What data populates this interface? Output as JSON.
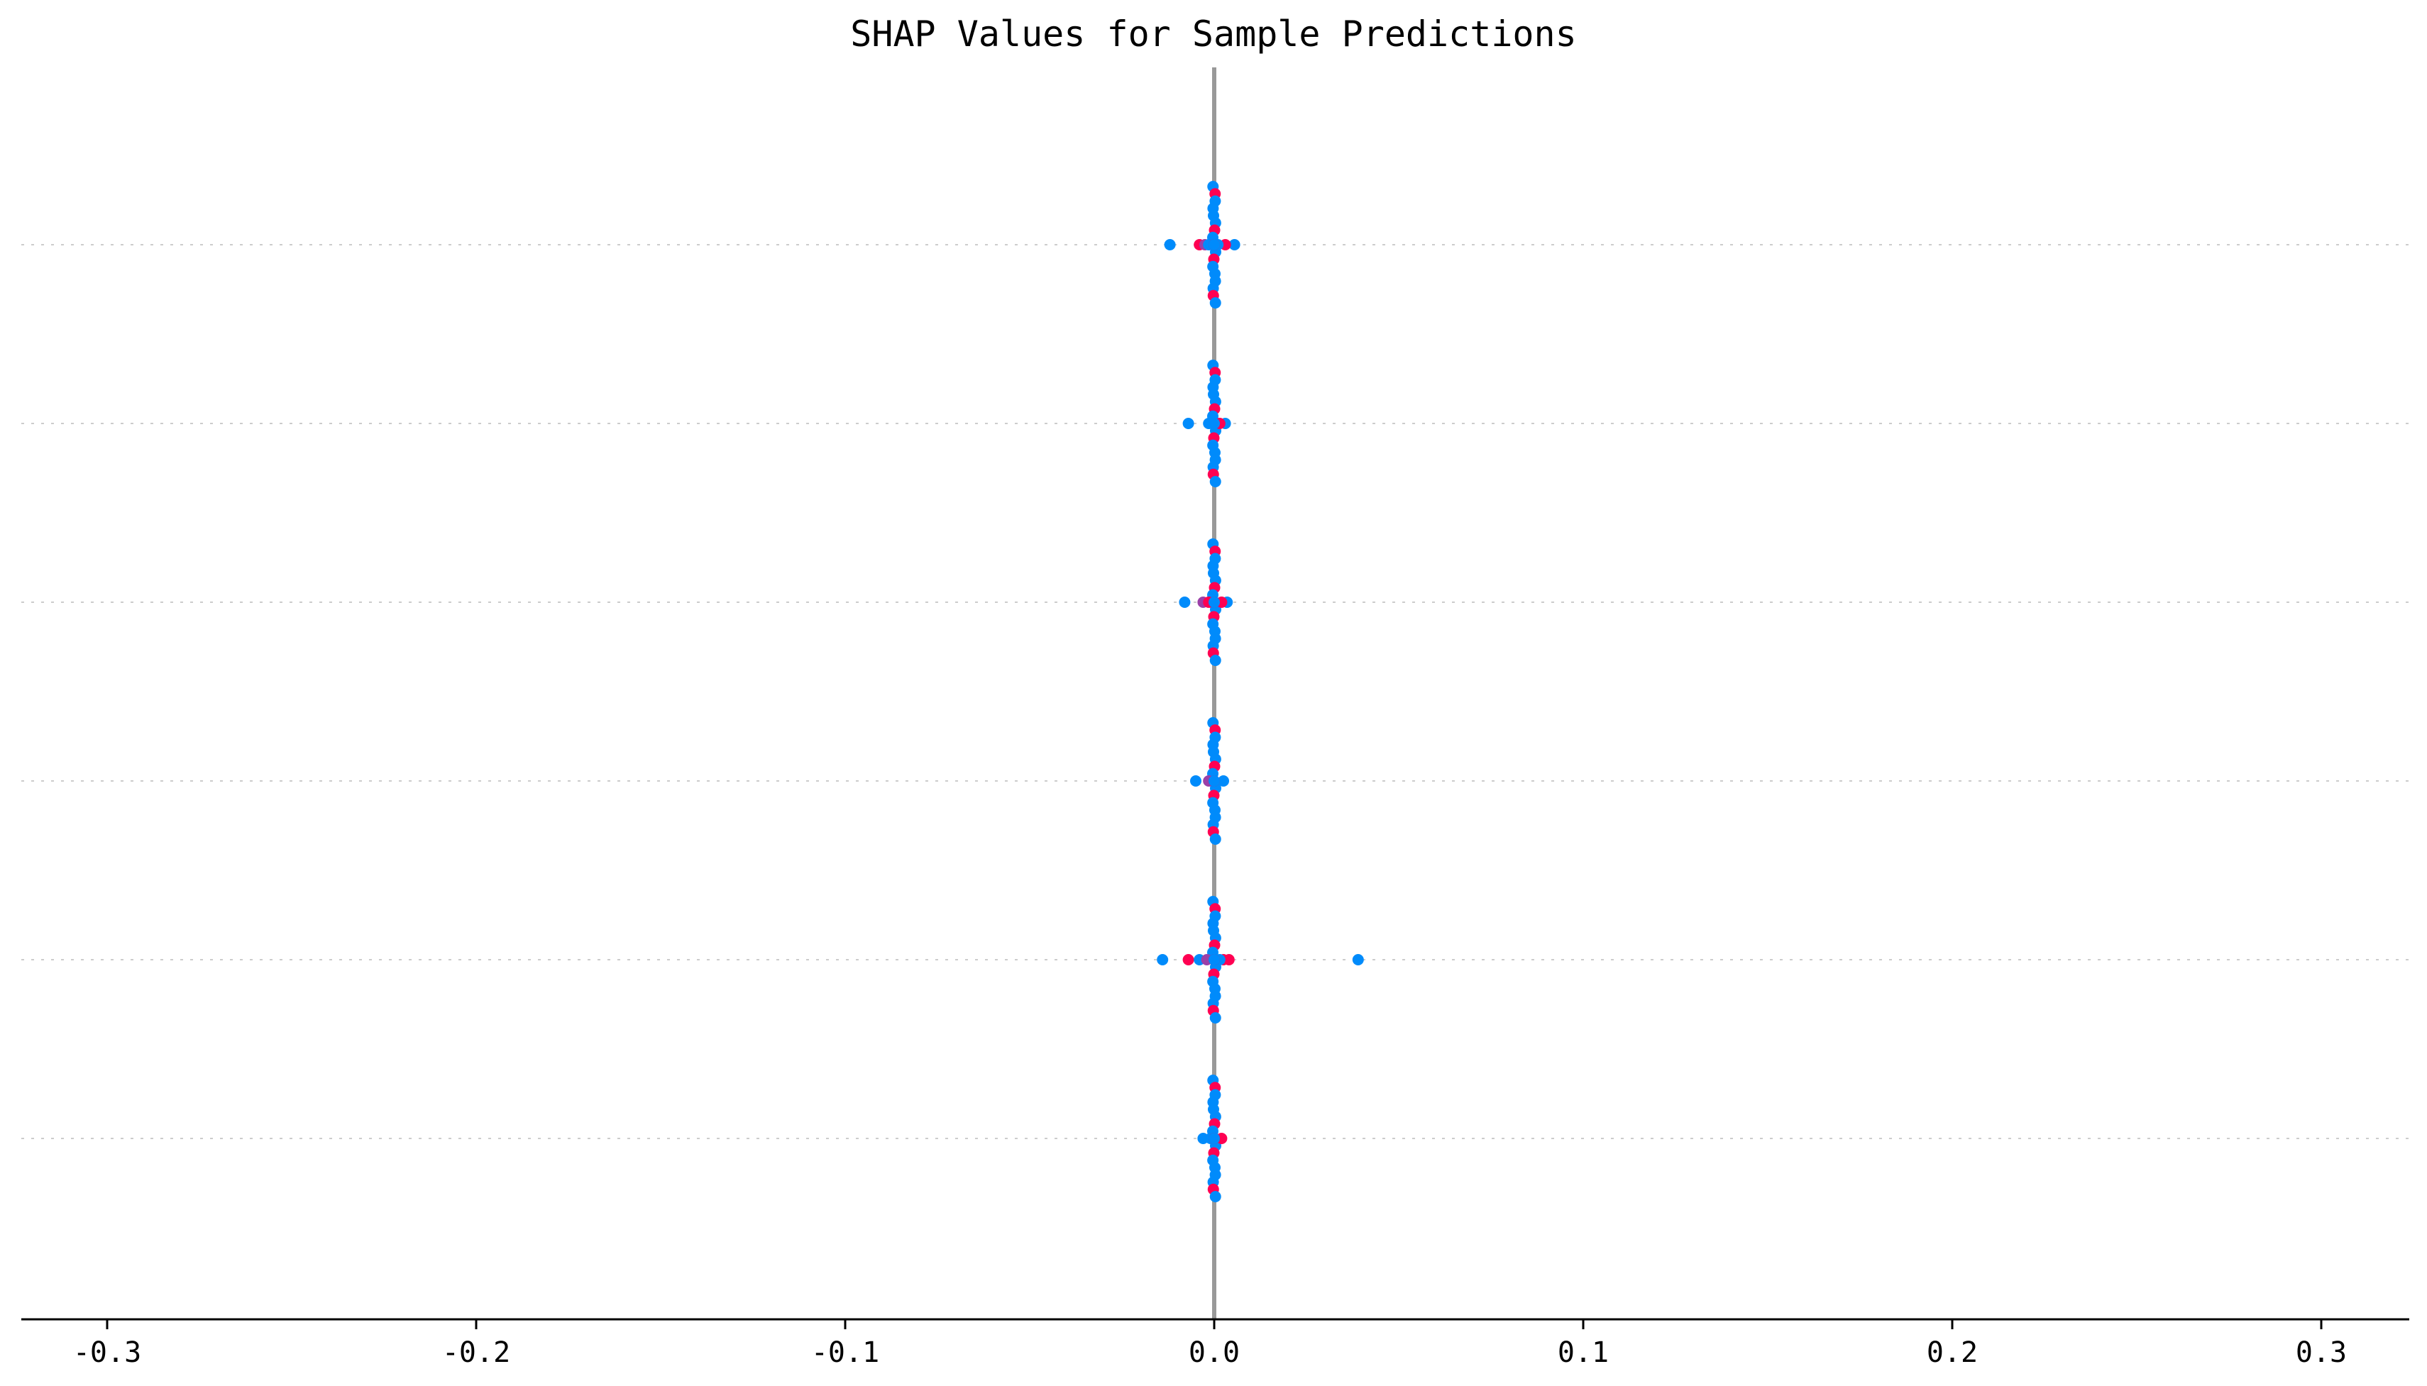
{
  "chart_data": {
    "type": "scatter",
    "subtype": "shap-beeswarm",
    "title": "SHAP Values for Sample Predictions",
    "xlabel": "",
    "ylabel": "",
    "xlim": [
      -0.325,
      0.325
    ],
    "xticks": [
      -0.3,
      -0.2,
      -0.1,
      0.0,
      0.1,
      0.2,
      0.3
    ],
    "xtick_labels": [
      "-0.3",
      "-0.2",
      "-0.1",
      "0.0",
      "0.1",
      "0.2",
      "0.3"
    ],
    "rows": 6,
    "grid": "horizontal dotted row guides",
    "zero_line": true,
    "colors": {
      "low": "#008bfb",
      "high": "#ff0052",
      "mid": "#9b3fa8",
      "zero_line": "#999999",
      "guide": "#cccccc",
      "axis": "#000000"
    },
    "features": [
      {
        "row": 0,
        "points": [
          {
            "x": -0.012,
            "c": "low"
          },
          {
            "x": 0.0055,
            "c": "low"
          },
          {
            "x": -0.004,
            "c": "high"
          },
          {
            "x": -0.0025,
            "c": "mid"
          },
          {
            "x": 0.003,
            "c": "high"
          },
          {
            "x": -0.0015,
            "c": "low"
          },
          {
            "x": 0.001,
            "c": "low"
          },
          {
            "x": 0.0,
            "c": "high"
          },
          {
            "x": 0.0,
            "c": "low"
          }
        ]
      },
      {
        "row": 1,
        "points": [
          {
            "x": -0.007,
            "c": "low"
          },
          {
            "x": 0.003,
            "c": "low"
          },
          {
            "x": -0.0015,
            "c": "low"
          },
          {
            "x": 0.0015,
            "c": "high"
          },
          {
            "x": 0.0,
            "c": "low"
          }
        ]
      },
      {
        "row": 2,
        "points": [
          {
            "x": -0.008,
            "c": "low"
          },
          {
            "x": 0.0035,
            "c": "low"
          },
          {
            "x": -0.003,
            "c": "mid"
          },
          {
            "x": -0.0015,
            "c": "high"
          },
          {
            "x": 0.002,
            "c": "high"
          },
          {
            "x": 0.0,
            "c": "high"
          },
          {
            "x": 0.0,
            "c": "low"
          }
        ]
      },
      {
        "row": 3,
        "points": [
          {
            "x": -0.005,
            "c": "low"
          },
          {
            "x": 0.0025,
            "c": "low"
          },
          {
            "x": -0.0015,
            "c": "mid"
          },
          {
            "x": 0.0,
            "c": "high"
          },
          {
            "x": 0.0,
            "c": "low"
          }
        ]
      },
      {
        "row": 4,
        "points": [
          {
            "x": -0.014,
            "c": "low"
          },
          {
            "x": 0.039,
            "c": "low"
          },
          {
            "x": -0.007,
            "c": "high"
          },
          {
            "x": 0.004,
            "c": "high"
          },
          {
            "x": -0.004,
            "c": "low"
          },
          {
            "x": 0.0025,
            "c": "high"
          },
          {
            "x": -0.002,
            "c": "mid"
          },
          {
            "x": 0.0015,
            "c": "low"
          },
          {
            "x": 0.0,
            "c": "high"
          },
          {
            "x": 0.0,
            "c": "low"
          }
        ]
      },
      {
        "row": 5,
        "points": [
          {
            "x": -0.003,
            "c": "low"
          },
          {
            "x": 0.002,
            "c": "high"
          },
          {
            "x": -0.001,
            "c": "low"
          },
          {
            "x": 0.0,
            "c": "high"
          },
          {
            "x": 0.0,
            "c": "low"
          }
        ]
      }
    ]
  }
}
